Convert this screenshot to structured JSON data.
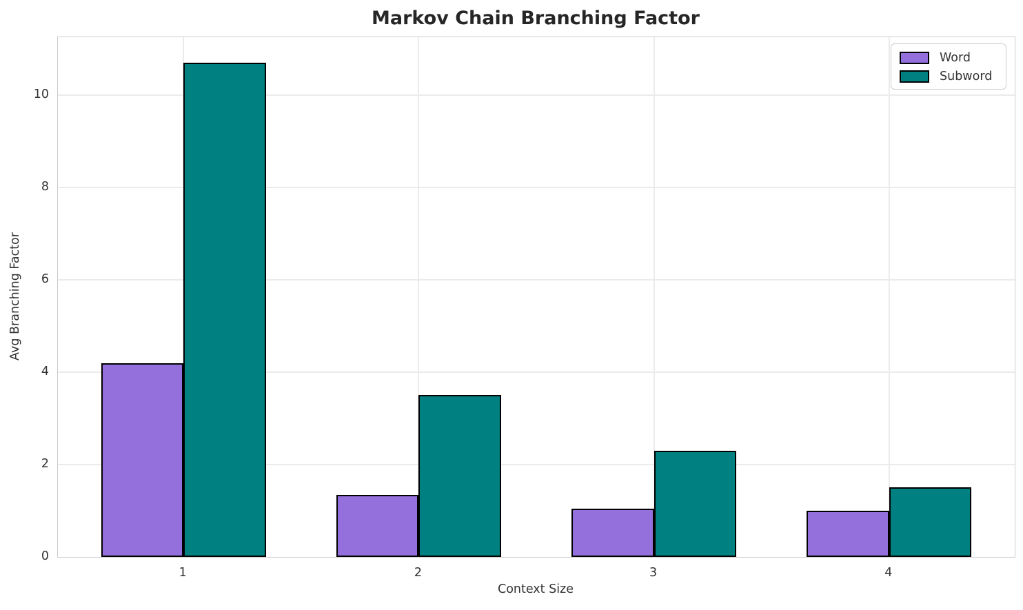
{
  "title": "Markov Chain Branching Factor",
  "chart_data": {
    "type": "bar",
    "title": "Markov Chain Branching Factor",
    "xlabel": "Context Size",
    "ylabel": "Avg Branching Factor",
    "categories": [
      "1",
      "2",
      "3",
      "4"
    ],
    "series": [
      {
        "name": "Word",
        "color": "#9370DB",
        "values": [
          4.2,
          1.35,
          1.05,
          1.0
        ]
      },
      {
        "name": "Subword",
        "color": "#008080",
        "values": [
          10.7,
          3.5,
          2.3,
          1.5
        ]
      }
    ],
    "yticks": [
      0,
      2,
      4,
      6,
      8,
      10
    ],
    "ylim": [
      0,
      11.25
    ],
    "grid": true,
    "legend_position": "upper right",
    "bar_width": 0.35,
    "bar_edge_color": "#000000"
  },
  "colors": {
    "background": "#ffffff",
    "grid": "#ebebeb",
    "spine": "#cccccc",
    "text": "#333333",
    "title": "#262626",
    "word_fill": "#9370DB",
    "subword_fill": "#008080"
  }
}
